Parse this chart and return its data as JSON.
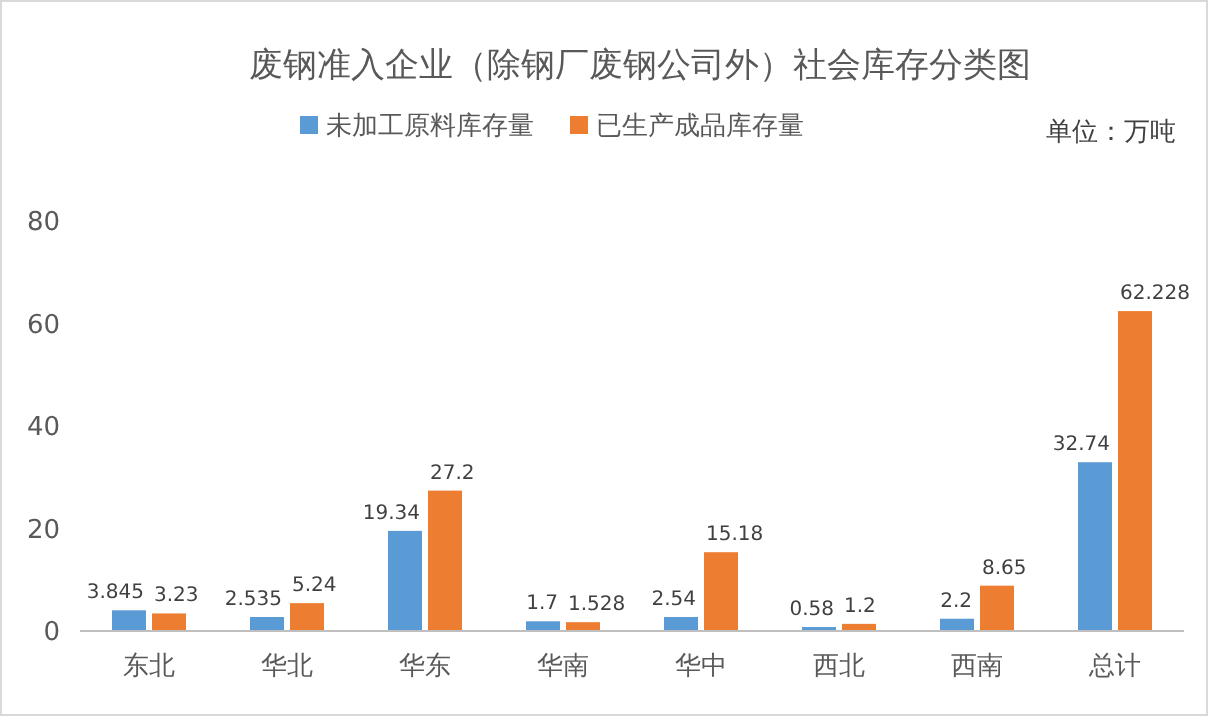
{
  "chart_data": {
    "type": "bar",
    "title": "废钢准入企业（除钢厂废钢公司外）社会库存分类图",
    "categories": [
      "东北",
      "华北",
      "华东",
      "华南",
      "华中",
      "西北",
      "西南",
      "总计"
    ],
    "series": [
      {
        "name": "未加工原料库存量",
        "color": "#5b9bd5",
        "values": [
          3.845,
          2.535,
          19.34,
          1.7,
          2.54,
          0.58,
          2.2,
          32.74
        ]
      },
      {
        "name": "已生产成品库存量",
        "color": "#ed7d31",
        "values": [
          3.23,
          5.24,
          27.2,
          1.528,
          15.18,
          1.2,
          8.65,
          62.228
        ]
      }
    ],
    "ylim": [
      0,
      80
    ],
    "yticks": [
      0,
      20,
      40,
      60,
      80
    ],
    "data_labels": true,
    "legend": "top",
    "annotations": [
      "单位：万吨"
    ]
  }
}
